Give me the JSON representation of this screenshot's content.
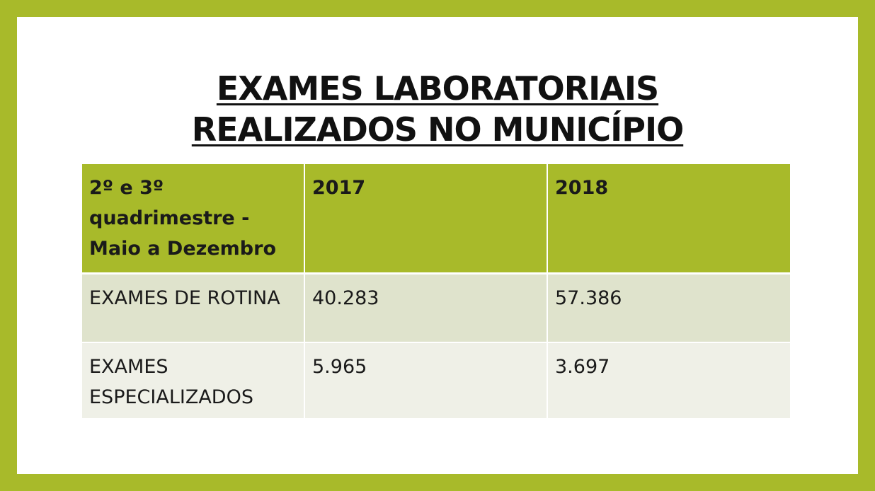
{
  "title": {
    "line1": "EXAMES LABORATORIAIS",
    "line2": "REALIZADOS NO MUNICÍPIO"
  },
  "table": {
    "header": {
      "period": "2º e 3º quadrimestre - Maio a Dezembro",
      "year1": "2017",
      "year2": "2018"
    },
    "rows": [
      {
        "label": "EXAMES DE ROTINA",
        "v2017": "40.283",
        "v2018": "57.386"
      },
      {
        "label": "EXAMES ESPECIALIZADOS",
        "v2017": "5.965",
        "v2018": "3.697"
      }
    ]
  },
  "colors": {
    "accent": "#a8ba2a",
    "row1": "#dfe3cc",
    "row2": "#eff0e7"
  }
}
